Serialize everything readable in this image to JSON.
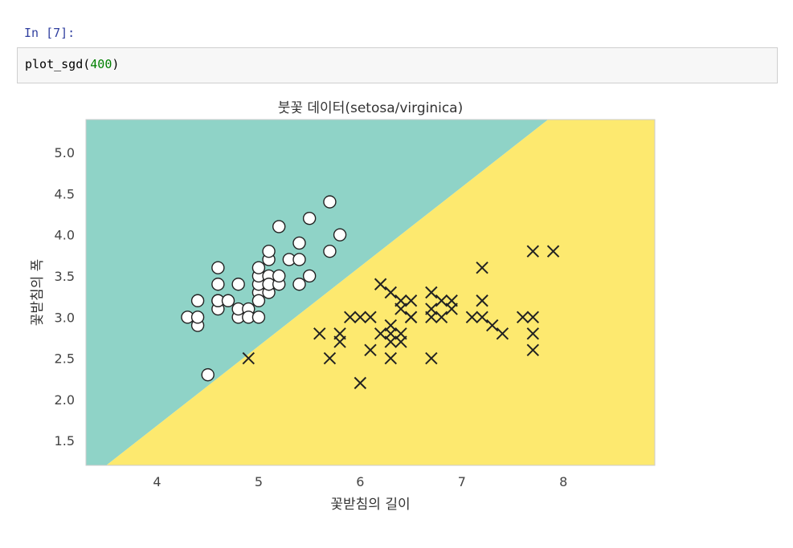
{
  "cell": {
    "prompt": "In [7]:",
    "code_func": "plot_sgd(",
    "code_arg": "400",
    "code_close": ")"
  },
  "colors": {
    "region_setosa": "#8fd3c7",
    "region_virginica": "#fde96f",
    "marker_edge": "#222222",
    "marker_fill": "#ffffff"
  },
  "chart_data": {
    "type": "scatter",
    "title": "붓꽃 데이터(setosa/virginica)",
    "xlabel": "꽃받침의 길이",
    "ylabel": "꽃받침의 폭",
    "xlim": [
      3.3,
      8.9
    ],
    "ylim": [
      1.2,
      5.4
    ],
    "xticks": [
      "4",
      "5",
      "6",
      "7",
      "8"
    ],
    "xtick_values": [
      4,
      5,
      6,
      7,
      8
    ],
    "yticks": [
      "1.5",
      "2.0",
      "2.5",
      "3.0",
      "3.5",
      "4.0",
      "4.5",
      "5.0"
    ],
    "ytick_values": [
      1.5,
      2.0,
      2.5,
      3.0,
      3.5,
      4.0,
      4.5,
      5.0
    ],
    "decision_boundary": {
      "x": [
        3.5,
        7.85
      ],
      "y": [
        1.2,
        5.4
      ]
    },
    "series": [
      {
        "name": "setosa",
        "marker": "circle",
        "x": [
          4.3,
          4.4,
          4.4,
          4.4,
          4.5,
          4.6,
          4.6,
          4.6,
          4.6,
          4.6,
          4.7,
          4.8,
          4.8,
          4.8,
          4.9,
          4.9,
          5.0,
          5.0,
          5.0,
          5.0,
          5.0,
          5.0,
          5.1,
          5.1,
          5.1,
          5.1,
          5.1,
          5.2,
          5.2,
          5.2,
          5.3,
          5.4,
          5.4,
          5.4,
          5.5,
          5.5,
          5.7,
          5.7,
          5.8
        ],
        "y": [
          3.0,
          2.9,
          3.0,
          3.2,
          2.3,
          3.1,
          3.2,
          3.4,
          3.6,
          3.2,
          3.2,
          3.0,
          3.1,
          3.4,
          3.1,
          3.0,
          3.0,
          3.3,
          3.4,
          3.5,
          3.6,
          3.2,
          3.3,
          3.5,
          3.7,
          3.8,
          3.4,
          3.4,
          3.5,
          4.1,
          3.7,
          3.4,
          3.7,
          3.9,
          3.5,
          4.2,
          3.8,
          4.4,
          4.0
        ]
      },
      {
        "name": "virginica",
        "marker": "x",
        "x": [
          4.9,
          5.6,
          5.7,
          5.8,
          5.8,
          5.9,
          6.0,
          6.0,
          6.1,
          6.1,
          6.2,
          6.2,
          6.3,
          6.3,
          6.3,
          6.3,
          6.3,
          6.4,
          6.4,
          6.4,
          6.4,
          6.5,
          6.5,
          6.5,
          6.7,
          6.7,
          6.7,
          6.7,
          6.8,
          6.8,
          6.9,
          6.9,
          7.1,
          7.2,
          7.2,
          7.2,
          7.3,
          7.4,
          7.6,
          7.7,
          7.7,
          7.7,
          7.7,
          7.9
        ],
        "y": [
          2.5,
          2.8,
          2.5,
          2.7,
          2.8,
          3.0,
          2.2,
          3.0,
          2.6,
          3.0,
          2.8,
          3.4,
          2.5,
          2.7,
          2.8,
          2.9,
          3.3,
          2.7,
          2.8,
          3.1,
          3.2,
          3.0,
          3.0,
          3.2,
          2.5,
          3.0,
          3.1,
          3.3,
          3.0,
          3.2,
          3.1,
          3.2,
          3.0,
          3.0,
          3.2,
          3.6,
          2.9,
          2.8,
          3.0,
          2.6,
          2.8,
          3.0,
          3.8,
          3.8
        ]
      }
    ]
  }
}
